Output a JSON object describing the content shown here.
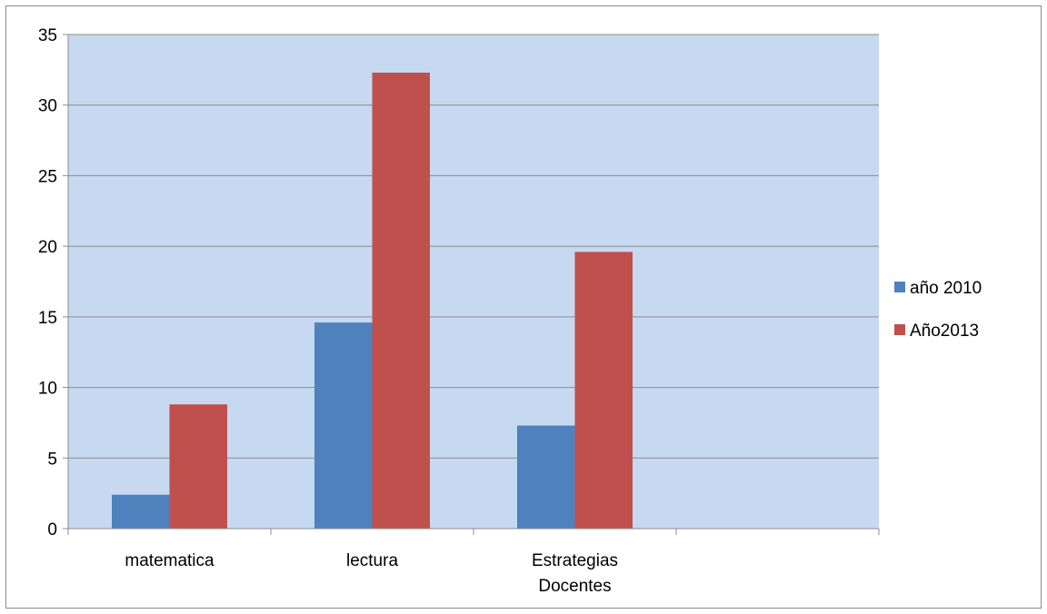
{
  "chart_data": {
    "type": "bar",
    "categories": [
      "matematica",
      "lectura",
      "Estrategias Docentes",
      ""
    ],
    "series": [
      {
        "name": "año 2010",
        "color": "#4f81bd",
        "values": [
          2.4,
          14.6,
          7.3,
          null
        ]
      },
      {
        "name": "Año2013",
        "color": "#c0504d",
        "values": [
          8.8,
          32.3,
          19.6,
          null
        ]
      }
    ],
    "ylim": [
      0,
      35
    ],
    "yticks": [
      0,
      5,
      10,
      15,
      20,
      25,
      30,
      35
    ],
    "grid": true,
    "plot_background": "#c6d9f1",
    "legend_position": "right"
  }
}
